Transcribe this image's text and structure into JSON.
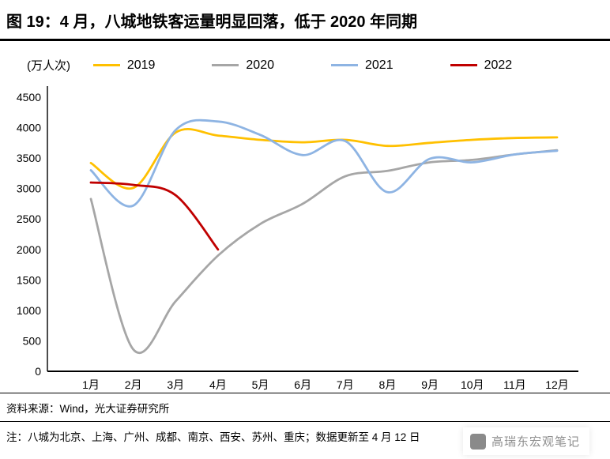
{
  "title": "图 19：4 月，八城地铁客运量明显回落，低于 2020 年同期",
  "footer": {
    "source": "资料来源：Wind，光大证券研究所",
    "note": "注：八城为北京、上海、广州、成都、南京、西安、苏州、重庆；数据更新至 4 月 12 日"
  },
  "watermark": {
    "text": "高瑞东宏观笔记"
  },
  "chart_data": {
    "type": "line",
    "title": "八城地铁客运量",
    "ylabel": "(万人次)",
    "xlabel": "",
    "ylim": [
      0,
      4500
    ],
    "ytick_step": 500,
    "grid": false,
    "legend_position": "top",
    "categories": [
      "1月",
      "2月",
      "3月",
      "4月",
      "5月",
      "6月",
      "7月",
      "8月",
      "9月",
      "10月",
      "11月",
      "12月"
    ],
    "series": [
      {
        "name": "2019",
        "color": "#FFC000",
        "values": [
          3420,
          3010,
          3920,
          3870,
          3800,
          3760,
          3800,
          3700,
          3750,
          3800,
          3830,
          3840
        ]
      },
      {
        "name": "2020",
        "color": "#A6A6A6",
        "values": [
          2830,
          360,
          1150,
          1900,
          2420,
          2750,
          3200,
          3290,
          3430,
          3470,
          3560,
          3630
        ]
      },
      {
        "name": "2021",
        "color": "#8EB4E3",
        "values": [
          3300,
          2720,
          3960,
          4100,
          3880,
          3550,
          3780,
          2940,
          3490,
          3430,
          3560,
          3620
        ]
      },
      {
        "name": "2022",
        "color": "#C00000",
        "values": [
          3100,
          3060,
          2890,
          2000,
          null,
          null,
          null,
          null,
          null,
          null,
          null,
          null
        ]
      }
    ]
  }
}
